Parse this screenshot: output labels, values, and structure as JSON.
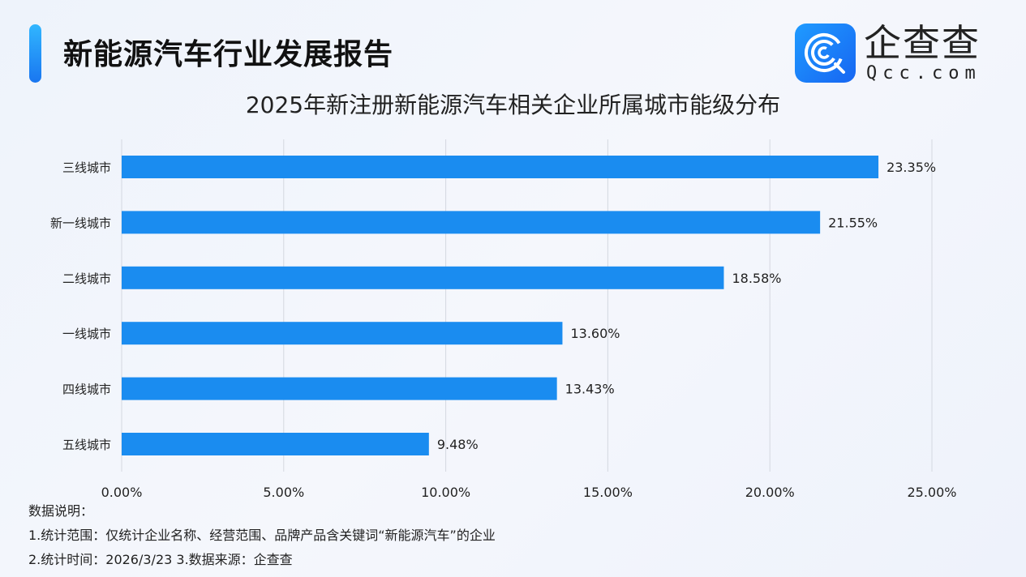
{
  "header": {
    "title": "新能源汽车行业发展报告"
  },
  "logo": {
    "brand": "企查查",
    "domain": "Qcc.com",
    "color": "#1a8cf0"
  },
  "chart_data": {
    "type": "bar",
    "orientation": "horizontal",
    "title": "2025年新注册新能源汽车相关企业所属城市能级分布",
    "categories": [
      "三线城市",
      "新一线城市",
      "二线城市",
      "一线城市",
      "四线城市",
      "五线城市"
    ],
    "values": [
      23.35,
      21.55,
      18.58,
      13.6,
      13.43,
      9.48
    ],
    "data_labels": [
      "23.35%",
      "21.55%",
      "18.58%",
      "13.60%",
      "13.43%",
      "9.48%"
    ],
    "xlim": [
      0,
      25
    ],
    "x_ticks": [
      0,
      5,
      10,
      15,
      20,
      25
    ],
    "x_tick_labels": [
      "0.00%",
      "5.00%",
      "10.00%",
      "15.00%",
      "20.00%",
      "25.00%"
    ],
    "grid": "vertical",
    "bar_color": "#1a8cf0"
  },
  "notes": {
    "heading": "数据说明：",
    "line1": "1.统计范围：仅统计企业名称、经营范围、品牌产品含关键词“新能源汽车”的企业",
    "line2": "2.统计时间：2026/3/23  3.数据来源：企查查"
  }
}
